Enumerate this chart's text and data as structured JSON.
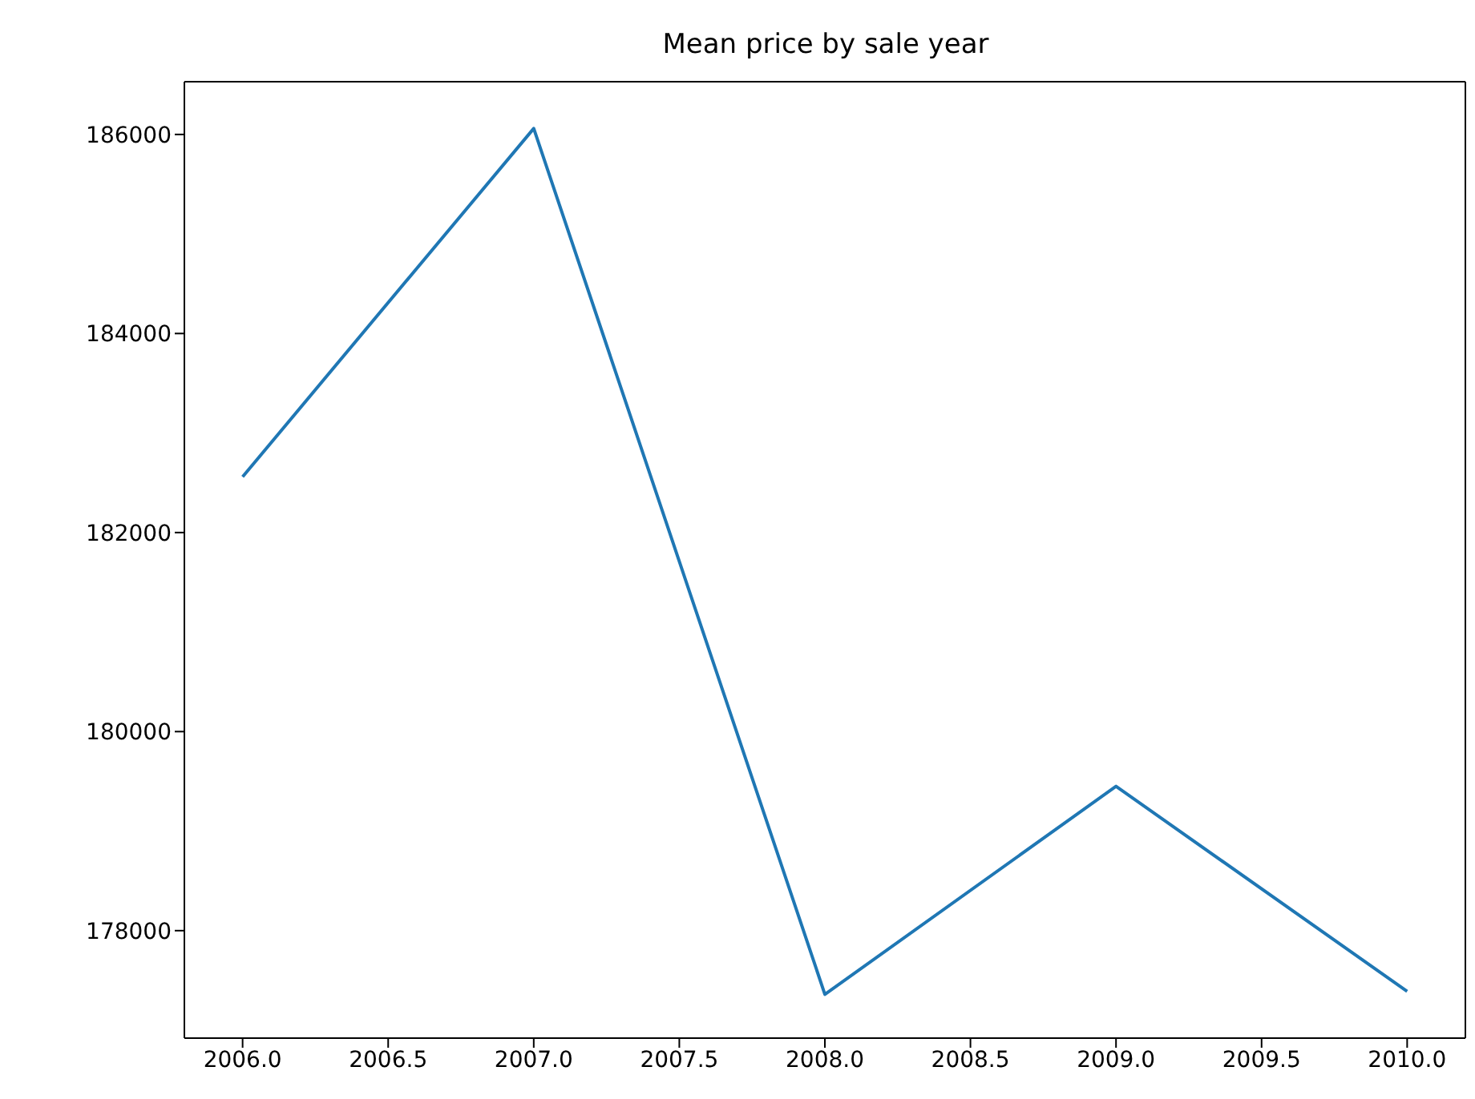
{
  "chart_data": {
    "type": "line",
    "title": "Mean price by sale year",
    "x": [
      2006,
      2007,
      2008,
      2009,
      2010
    ],
    "series": [
      {
        "color": "#1f77b4",
        "values": [
          182560,
          186060,
          177360,
          179450,
          177390
        ]
      }
    ],
    "xlim": [
      2005.8,
      2010.2
    ],
    "xticks": [
      {
        "value": 2006,
        "label": "2006.0"
      },
      {
        "value": 2006.5,
        "label": "2006.5"
      },
      {
        "value": 2007,
        "label": "2007.0"
      },
      {
        "value": 2007.5,
        "label": "2007.5"
      },
      {
        "value": 2008,
        "label": "2008.0"
      },
      {
        "value": 2008.5,
        "label": "2008.5"
      },
      {
        "value": 2009,
        "label": "2009.0"
      },
      {
        "value": 2009.5,
        "label": "2009.5"
      },
      {
        "value": 2010,
        "label": "2010.0"
      }
    ],
    "ylim": [
      176920,
      186530
    ],
    "yticks": [
      178000,
      180000,
      182000,
      184000,
      186000
    ],
    "grid": false,
    "marker": "none",
    "line_style": "solid"
  }
}
